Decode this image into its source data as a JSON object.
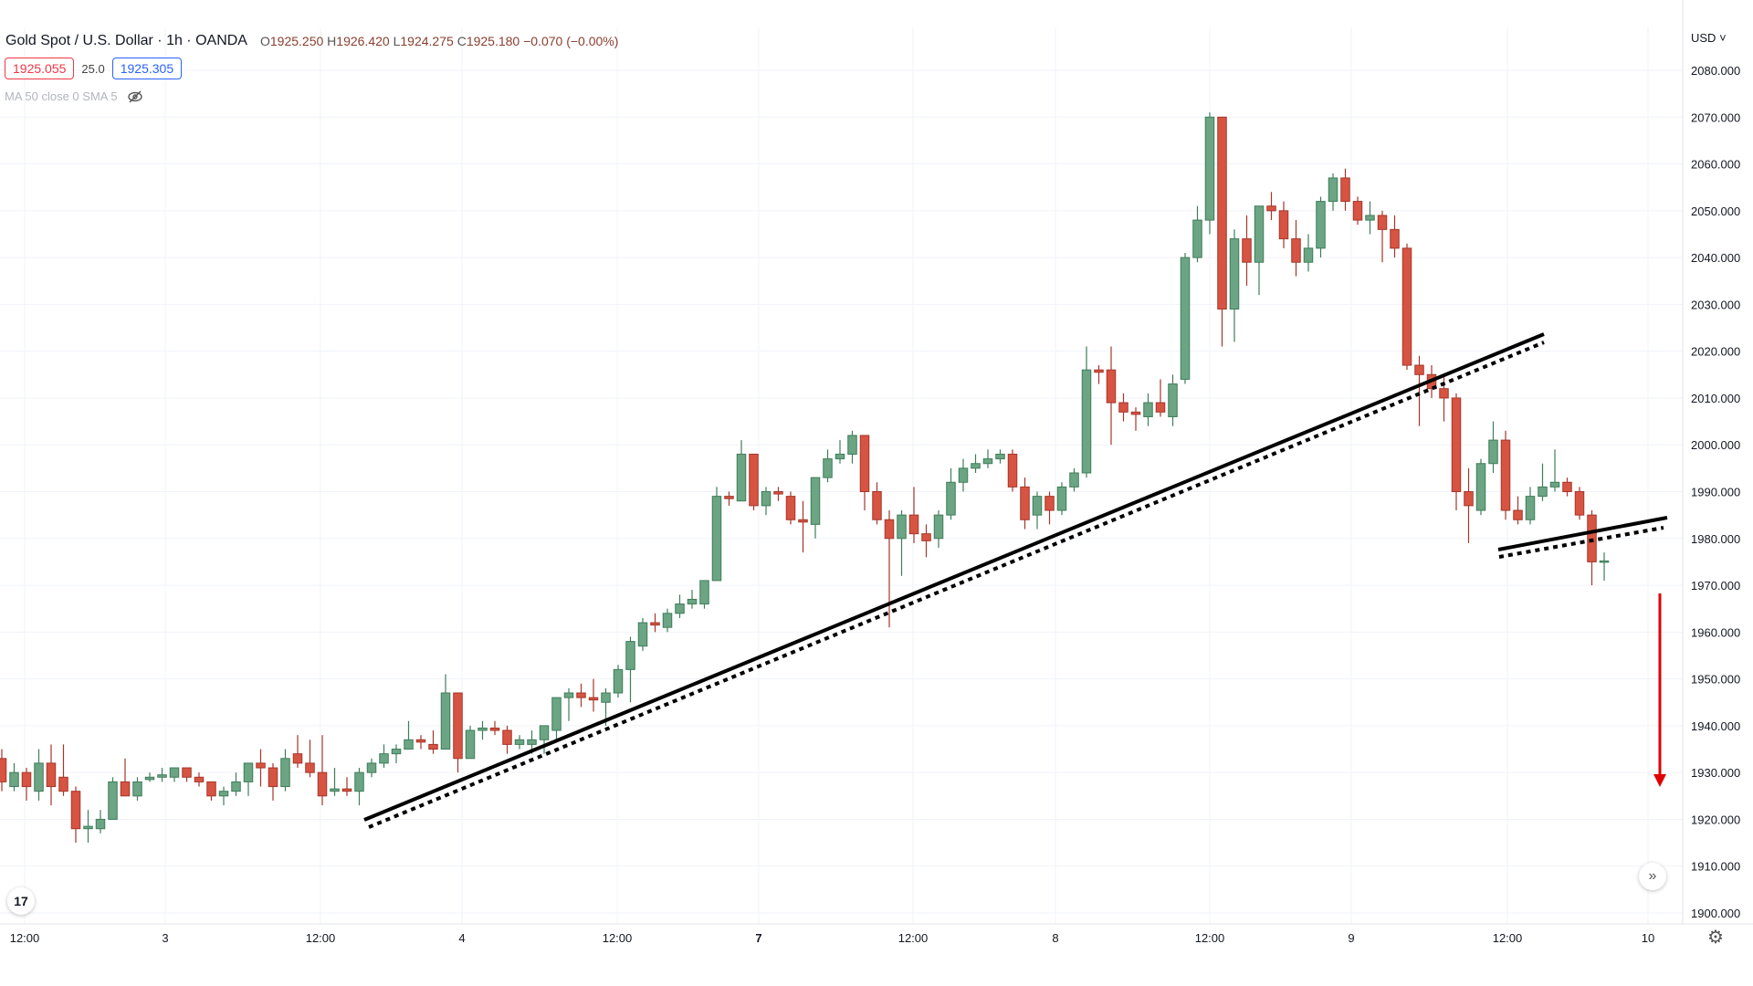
{
  "header": {
    "symbol_title": "Gold Spot / U.S. Dollar · 1h · OANDA",
    "open_label": "O",
    "open": "1925.250",
    "high_label": "H",
    "high": "1926.420",
    "low_label": "L",
    "low": "1924.275",
    "close_label": "C",
    "close": "1925.180",
    "change": "−0.070 (−0.00%)"
  },
  "trade": {
    "sell_price": "1925.055",
    "spread": "25.0",
    "buy_price": "1925.305"
  },
  "indicator": {
    "label": "MA 50 close 0 SMA 5",
    "icon": "eye-crossed-icon"
  },
  "currency_menu": "USD",
  "logo": "TV",
  "colors": {
    "up": "#6ba583",
    "down": "#d75442",
    "up_border": "#3f7d5a",
    "down_border": "#a5362a",
    "trendline": "#000000",
    "arrow": "#e00000"
  },
  "chart_data": {
    "type": "candlestick",
    "title": "Gold Spot / U.S. Dollar · 1h · OANDA",
    "ylim": [
      1900,
      2080
    ],
    "y_ticks": [
      "2080.000",
      "2070.000",
      "2060.000",
      "2050.000",
      "2040.000",
      "2030.000",
      "2020.000",
      "2010.000",
      "2000.000",
      "1990.000",
      "1980.000",
      "1970.000",
      "1960.000",
      "1950.000",
      "1940.000",
      "1930.000",
      "1920.000",
      "1910.000",
      "1900.000"
    ],
    "x_ticks": [
      "12:00",
      "3",
      "12:00",
      "4",
      "12:00",
      "7",
      "12:00",
      "8",
      "12:00",
      "9",
      "12:00",
      "10"
    ],
    "candles": [
      [
        1933,
        1935,
        1926,
        1928
      ],
      [
        1927,
        1932,
        1926,
        1930
      ],
      [
        1930,
        1931,
        1924,
        1927
      ],
      [
        1926,
        1935,
        1924,
        1932
      ],
      [
        1932,
        1936,
        1923,
        1927
      ],
      [
        1929,
        1936,
        1925,
        1926
      ],
      [
        1926,
        1927,
        1915,
        1918
      ],
      [
        1918,
        1922,
        1915,
        1918.5
      ],
      [
        1918,
        1922,
        1917,
        1920
      ],
      [
        1920,
        1929,
        1920,
        1928
      ],
      [
        1928,
        1933,
        1925,
        1925
      ],
      [
        1925,
        1929,
        1924,
        1928
      ],
      [
        1928.5,
        1930,
        1928,
        1929
      ],
      [
        1929,
        1931,
        1928,
        1929.5
      ],
      [
        1929,
        1931,
        1928,
        1931
      ],
      [
        1931,
        1931,
        1928,
        1929
      ],
      [
        1929,
        1930,
        1927,
        1928
      ],
      [
        1928,
        1928,
        1924,
        1925
      ],
      [
        1925,
        1927,
        1923,
        1926
      ],
      [
        1926,
        1930,
        1925,
        1928
      ],
      [
        1928,
        1932,
        1925,
        1932
      ],
      [
        1932,
        1935,
        1927,
        1931
      ],
      [
        1931,
        1932,
        1924,
        1927
      ],
      [
        1927,
        1935,
        1926,
        1933
      ],
      [
        1934,
        1938,
        1931,
        1932
      ],
      [
        1932,
        1937,
        1929,
        1930
      ],
      [
        1930,
        1938,
        1923,
        1925
      ],
      [
        1926,
        1931,
        1925,
        1926.5
      ],
      [
        1926.5,
        1929,
        1925,
        1926
      ],
      [
        1926,
        1931,
        1923,
        1930
      ],
      [
        1930,
        1933,
        1929,
        1932
      ],
      [
        1932,
        1936,
        1931,
        1934
      ],
      [
        1934,
        1936,
        1932,
        1935
      ],
      [
        1935,
        1941,
        1935,
        1937
      ],
      [
        1937,
        1938,
        1935,
        1936.5
      ],
      [
        1936,
        1939,
        1934,
        1935
      ],
      [
        1935,
        1951,
        1935,
        1947
      ],
      [
        1947,
        1947,
        1930,
        1933
      ],
      [
        1933,
        1940,
        1933,
        1939
      ],
      [
        1939,
        1941,
        1937,
        1939.5
      ],
      [
        1939.5,
        1941,
        1938,
        1939
      ],
      [
        1939,
        1940,
        1934,
        1936
      ],
      [
        1936,
        1938,
        1935,
        1937
      ],
      [
        1936,
        1939,
        1934,
        1937
      ],
      [
        1937,
        1940,
        1934,
        1940
      ],
      [
        1939,
        1946,
        1937,
        1946
      ],
      [
        1946,
        1948,
        1941,
        1947
      ],
      [
        1947,
        1949,
        1944,
        1946
      ],
      [
        1946,
        1950,
        1943,
        1945.5
      ],
      [
        1945,
        1948,
        1940,
        1947
      ],
      [
        1947,
        1953,
        1946,
        1952
      ],
      [
        1952,
        1959,
        1945,
        1958
      ],
      [
        1957,
        1963,
        1956,
        1962
      ],
      [
        1962,
        1964,
        1960,
        1961.5
      ],
      [
        1961,
        1965,
        1960,
        1964
      ],
      [
        1964,
        1968,
        1963,
        1966
      ],
      [
        1966,
        1969,
        1965,
        1967
      ],
      [
        1966,
        1971,
        1965,
        1971
      ],
      [
        1971,
        1991,
        1971,
        1989
      ],
      [
        1989,
        1990,
        1987,
        1988.5
      ],
      [
        1988,
        2001,
        1988,
        1998
      ],
      [
        1998,
        1998,
        1986,
        1987
      ],
      [
        1987,
        1991,
        1985,
        1990
      ],
      [
        1990,
        1991,
        1988,
        1989.5
      ],
      [
        1989,
        1990,
        1983,
        1984
      ],
      [
        1984,
        1988,
        1977,
        1983.5
      ],
      [
        1983,
        1993,
        1980,
        1993
      ],
      [
        1993,
        1999,
        1992,
        1997
      ],
      [
        1997,
        2001,
        1996,
        1998
      ],
      [
        1998,
        2003,
        1996,
        2002
      ],
      [
        2002,
        2002,
        1986,
        1990
      ],
      [
        1990,
        1992,
        1983,
        1984
      ],
      [
        1984,
        1986,
        1961,
        1980
      ],
      [
        1980,
        1986,
        1972,
        1985
      ],
      [
        1985,
        1991,
        1979,
        1981
      ],
      [
        1981,
        1983,
        1976,
        1979.5
      ],
      [
        1980,
        1986,
        1978,
        1985
      ],
      [
        1985,
        1995,
        1984,
        1992
      ],
      [
        1992,
        1997,
        1990,
        1995
      ],
      [
        1995,
        1998,
        1994,
        1996
      ],
      [
        1996,
        1999,
        1995,
        1997
      ],
      [
        1997,
        1999,
        1996,
        1998
      ],
      [
        1998,
        1999,
        1990,
        1991
      ],
      [
        1991,
        1993,
        1982,
        1984
      ],
      [
        1985,
        1990,
        1982,
        1989
      ],
      [
        1989,
        1990,
        1983,
        1986
      ],
      [
        1986,
        1992,
        1985,
        1991
      ],
      [
        1991,
        1995,
        1990,
        1994
      ],
      [
        1994,
        2021,
        1993,
        2016
      ],
      [
        2016,
        2017,
        2013,
        2015.5
      ],
      [
        2016,
        2021,
        2000,
        2009
      ],
      [
        2009,
        2011,
        2005,
        2007
      ],
      [
        2007,
        2008,
        2003,
        2006.5
      ],
      [
        2006,
        2011,
        2004,
        2009
      ],
      [
        2009,
        2014,
        2006,
        2007
      ],
      [
        2006,
        2015,
        2004,
        2013
      ],
      [
        2014,
        2041,
        2013,
        2040
      ],
      [
        2040,
        2051,
        2039,
        2048
      ],
      [
        2048,
        2071,
        2045,
        2070
      ],
      [
        2070,
        2070,
        2021,
        2029
      ],
      [
        2029,
        2046,
        2022,
        2044
      ],
      [
        2044,
        2049,
        2034,
        2039
      ],
      [
        2039,
        2051,
        2032,
        2051
      ],
      [
        2051,
        2054,
        2048,
        2050
      ],
      [
        2050,
        2052,
        2042,
        2044
      ],
      [
        2044,
        2048,
        2036,
        2039
      ],
      [
        2039,
        2045,
        2037,
        2042
      ],
      [
        2042,
        2053,
        2040,
        2052
      ],
      [
        2052,
        2058,
        2050,
        2057
      ],
      [
        2057,
        2059,
        2050,
        2052
      ],
      [
        2052,
        2053,
        2047,
        2048
      ],
      [
        2048,
        2052,
        2045,
        2049
      ],
      [
        2049,
        2050,
        2039,
        2046
      ],
      [
        2046,
        2049,
        2040,
        2042
      ],
      [
        2042,
        2043,
        2016,
        2017
      ],
      [
        2017,
        2019,
        2004,
        2015
      ],
      [
        2015,
        2017,
        2010,
        2012
      ],
      [
        2012,
        2015,
        2005,
        2010
      ],
      [
        2010,
        2011,
        1986,
        1990
      ],
      [
        1990,
        1995,
        1979,
        1987
      ],
      [
        1986,
        1997,
        1985,
        1996
      ],
      [
        1996,
        2005,
        1994,
        2001
      ],
      [
        2001,
        2003,
        1984,
        1986
      ],
      [
        1986,
        1989,
        1983,
        1984
      ],
      [
        1984,
        1991,
        1983,
        1989
      ],
      [
        1989,
        1996,
        1988,
        1991
      ],
      [
        1991,
        1999,
        1990,
        1992
      ],
      [
        1992,
        1993,
        1989,
        1990
      ],
      [
        1990,
        1991,
        1984,
        1985
      ],
      [
        1985,
        1986,
        1970,
        1975
      ],
      [
        1975,
        1977,
        1971,
        1975.2
      ]
    ]
  }
}
